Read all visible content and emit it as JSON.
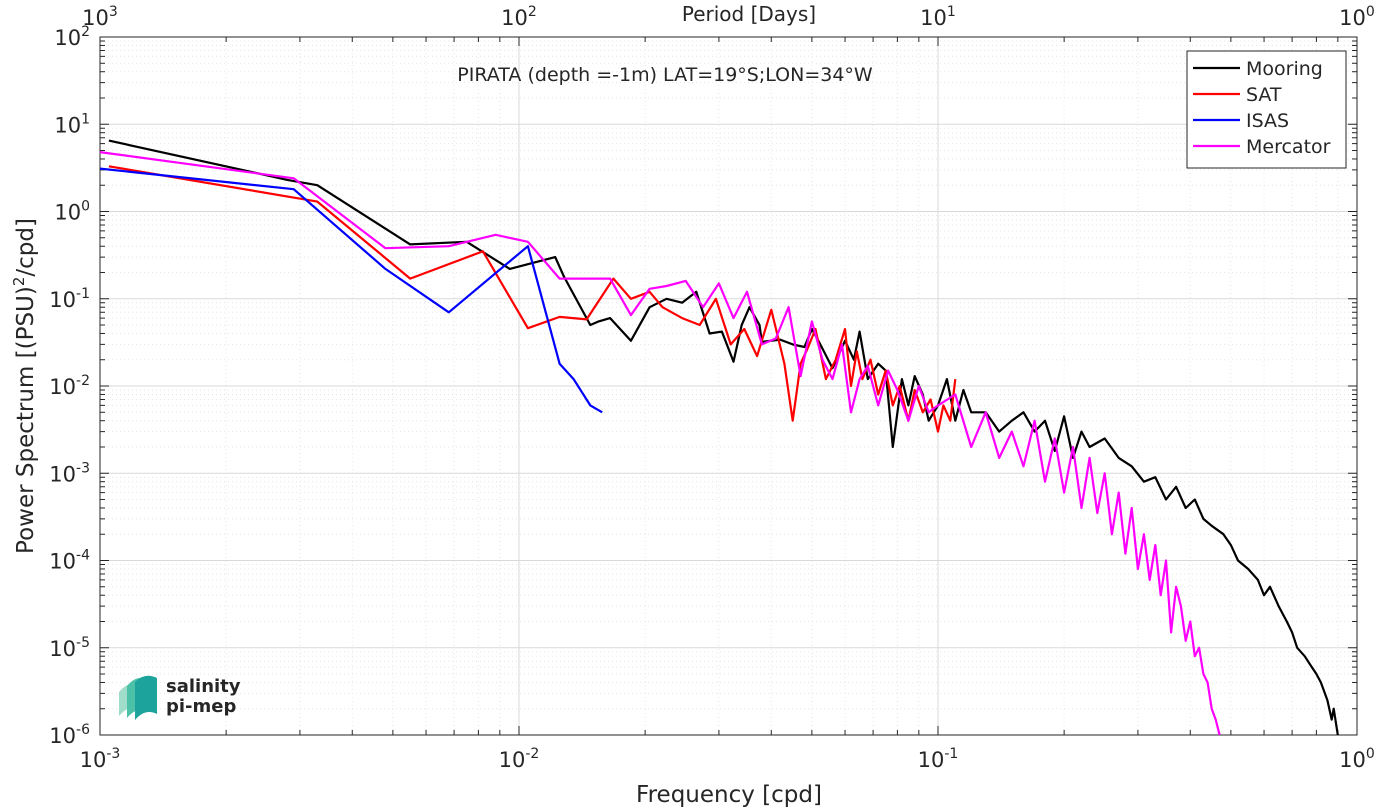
{
  "chart_data": {
    "type": "line",
    "title": "PIRATA (depth =-1m) LAT=19°S;LON=34°W",
    "xlabel": "Frequency [cpd]",
    "ylabel_main": "Power Spectrum [(PSU)",
    "ylabel_sup": "2",
    "ylabel_tail": "/cpd]",
    "top_axis_label": "Period [Days]",
    "x_scale": "log",
    "y_scale": "log",
    "xlim": [
      0.001,
      1
    ],
    "ylim": [
      1e-06,
      100
    ],
    "grid": true,
    "legend_position": "top-right",
    "x_ticks": [
      {
        "value": 0.001,
        "base": "10",
        "exp": "-3"
      },
      {
        "value": 0.01,
        "base": "10",
        "exp": "-2"
      },
      {
        "value": 0.1,
        "base": "10",
        "exp": "-1"
      },
      {
        "value": 1,
        "base": "10",
        "exp": "0"
      }
    ],
    "y_ticks": [
      {
        "value": 1e-06,
        "base": "10",
        "exp": "-6"
      },
      {
        "value": 1e-05,
        "base": "10",
        "exp": "-5"
      },
      {
        "value": 0.0001,
        "base": "10",
        "exp": "-4"
      },
      {
        "value": 0.001,
        "base": "10",
        "exp": "-3"
      },
      {
        "value": 0.01,
        "base": "10",
        "exp": "-2"
      },
      {
        "value": 0.1,
        "base": "10",
        "exp": "-1"
      },
      {
        "value": 1,
        "base": "10",
        "exp": "0"
      },
      {
        "value": 10,
        "base": "10",
        "exp": "1"
      },
      {
        "value": 100,
        "base": "10",
        "exp": "2"
      }
    ],
    "top_ticks": [
      {
        "value": 0.001,
        "base": "10",
        "exp": "3"
      },
      {
        "value": 0.01,
        "base": "10",
        "exp": "2"
      },
      {
        "value": 0.1,
        "base": "10",
        "exp": "1"
      },
      {
        "value": 1,
        "base": "10",
        "exp": "0"
      }
    ],
    "series": [
      {
        "name": "Mooring",
        "color": "#000000",
        "x": [
          0.00105,
          0.0028,
          0.0033,
          0.0055,
          0.0075,
          0.0095,
          0.0122,
          0.0128,
          0.0148,
          0.0155,
          0.0165,
          0.0185,
          0.0205,
          0.0225,
          0.0245,
          0.0265,
          0.0285,
          0.0305,
          0.0325,
          0.034,
          0.0355,
          0.0375,
          0.038,
          0.042,
          0.045,
          0.048,
          0.05,
          0.052,
          0.056,
          0.06,
          0.063,
          0.065,
          0.068,
          0.072,
          0.075,
          0.078,
          0.082,
          0.085,
          0.088,
          0.092,
          0.095,
          0.1,
          0.105,
          0.11,
          0.115,
          0.12,
          0.13,
          0.14,
          0.15,
          0.16,
          0.17,
          0.18,
          0.19,
          0.2,
          0.21,
          0.22,
          0.23,
          0.25,
          0.27,
          0.29,
          0.31,
          0.33,
          0.35,
          0.37,
          0.39,
          0.41,
          0.43,
          0.45,
          0.48,
          0.5,
          0.52,
          0.55,
          0.58,
          0.6,
          0.62,
          0.65,
          0.68,
          0.7,
          0.72,
          0.75,
          0.78,
          0.8,
          0.82,
          0.85,
          0.87,
          0.88,
          0.9
        ],
        "y": [
          6.5,
          2.3,
          2.0,
          0.42,
          0.45,
          0.22,
          0.3,
          0.18,
          0.05,
          0.055,
          0.06,
          0.033,
          0.08,
          0.1,
          0.09,
          0.12,
          0.04,
          0.042,
          0.019,
          0.05,
          0.08,
          0.05,
          0.032,
          0.034,
          0.03,
          0.028,
          0.045,
          0.032,
          0.016,
          0.033,
          0.02,
          0.042,
          0.012,
          0.018,
          0.015,
          0.002,
          0.012,
          0.006,
          0.013,
          0.008,
          0.004,
          0.006,
          0.012,
          0.004,
          0.009,
          0.005,
          0.005,
          0.003,
          0.004,
          0.005,
          0.003,
          0.004,
          0.0018,
          0.0045,
          0.0015,
          0.003,
          0.002,
          0.0025,
          0.0015,
          0.0012,
          0.0008,
          0.0009,
          0.0005,
          0.0007,
          0.0004,
          0.0005,
          0.0003,
          0.00025,
          0.0002,
          0.00015,
          0.0001,
          8e-05,
          6e-05,
          4e-05,
          5e-05,
          3e-05,
          2e-05,
          1.5e-05,
          1e-05,
          8e-06,
          6e-06,
          5e-06,
          4e-06,
          2.5e-06,
          1.5e-06,
          2e-06,
          1e-06
        ]
      },
      {
        "name": "SAT",
        "color": "#ff0000",
        "x": [
          0.00105,
          0.0033,
          0.0055,
          0.0082,
          0.0105,
          0.0125,
          0.0145,
          0.0168,
          0.0185,
          0.0205,
          0.022,
          0.0245,
          0.027,
          0.0295,
          0.032,
          0.0345,
          0.037,
          0.04,
          0.043,
          0.045,
          0.047,
          0.049,
          0.051,
          0.054,
          0.057,
          0.06,
          0.062,
          0.064,
          0.066,
          0.069,
          0.072,
          0.075,
          0.078,
          0.081,
          0.085,
          0.088,
          0.092,
          0.096,
          0.1,
          0.103,
          0.107,
          0.11
        ],
        "y": [
          3.3,
          1.3,
          0.17,
          0.35,
          0.046,
          0.062,
          0.058,
          0.17,
          0.1,
          0.12,
          0.08,
          0.06,
          0.05,
          0.1,
          0.03,
          0.045,
          0.022,
          0.075,
          0.018,
          0.004,
          0.018,
          0.028,
          0.045,
          0.012,
          0.02,
          0.045,
          0.01,
          0.025,
          0.012,
          0.02,
          0.008,
          0.015,
          0.006,
          0.01,
          0.004,
          0.009,
          0.005,
          0.007,
          0.003,
          0.006,
          0.004,
          0.012
        ]
      },
      {
        "name": "ISAS",
        "color": "#0000ff",
        "x": [
          0.001,
          0.0029,
          0.0048,
          0.0068,
          0.0105,
          0.0125,
          0.0135,
          0.0148,
          0.0158
        ],
        "y": [
          3.1,
          1.8,
          0.22,
          0.07,
          0.4,
          0.018,
          0.012,
          0.006,
          0.005
        ]
      },
      {
        "name": "Mercator",
        "color": "#ff00ff",
        "x": [
          0.001,
          0.0029,
          0.0048,
          0.0068,
          0.0088,
          0.0105,
          0.0125,
          0.0145,
          0.0165,
          0.0185,
          0.0205,
          0.0225,
          0.025,
          0.0275,
          0.03,
          0.0325,
          0.035,
          0.038,
          0.041,
          0.044,
          0.047,
          0.05,
          0.053,
          0.056,
          0.059,
          0.062,
          0.065,
          0.068,
          0.072,
          0.076,
          0.08,
          0.085,
          0.09,
          0.095,
          0.1,
          0.11,
          0.12,
          0.13,
          0.14,
          0.15,
          0.16,
          0.17,
          0.18,
          0.19,
          0.2,
          0.21,
          0.22,
          0.23,
          0.24,
          0.25,
          0.26,
          0.27,
          0.28,
          0.29,
          0.3,
          0.31,
          0.32,
          0.33,
          0.34,
          0.35,
          0.36,
          0.37,
          0.38,
          0.39,
          0.4,
          0.41,
          0.42,
          0.43,
          0.44,
          0.45,
          0.46,
          0.47
        ],
        "y": [
          4.8,
          2.4,
          0.38,
          0.4,
          0.54,
          0.45,
          0.17,
          0.17,
          0.17,
          0.065,
          0.13,
          0.14,
          0.16,
          0.08,
          0.15,
          0.06,
          0.12,
          0.03,
          0.035,
          0.08,
          0.013,
          0.055,
          0.02,
          0.012,
          0.03,
          0.005,
          0.012,
          0.017,
          0.006,
          0.015,
          0.009,
          0.004,
          0.01,
          0.005,
          0.006,
          0.008,
          0.002,
          0.005,
          0.0015,
          0.003,
          0.0012,
          0.004,
          0.0008,
          0.0025,
          0.0006,
          0.002,
          0.0004,
          0.0015,
          0.00035,
          0.001,
          0.0002,
          0.0006,
          0.00012,
          0.0004,
          8e-05,
          0.0002,
          6e-05,
          0.00015,
          4e-05,
          0.0001,
          1.5e-05,
          5e-05,
          3e-05,
          1.2e-05,
          2e-05,
          8e-06,
          1e-05,
          5e-06,
          4e-06,
          2e-06,
          1.5e-06,
          1e-06
        ]
      }
    ]
  },
  "logo": {
    "line1": "salinity",
    "line2": "pi-mep",
    "color": "#1ba39c"
  }
}
